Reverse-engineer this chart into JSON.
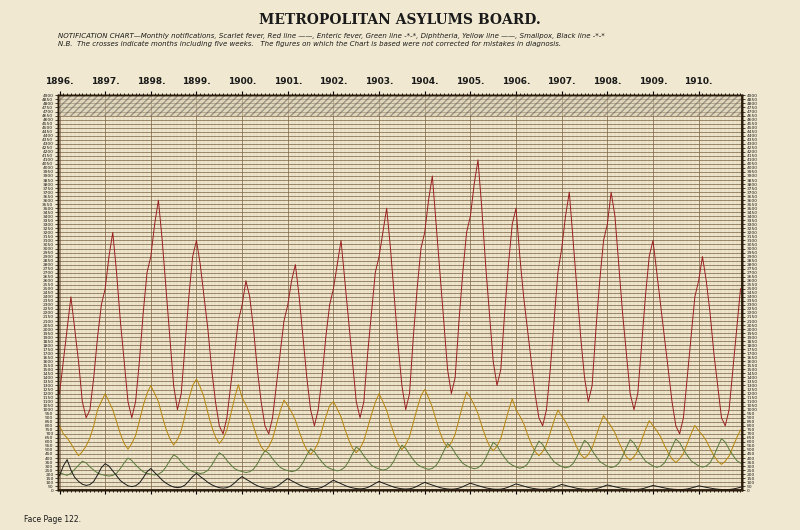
{
  "title": "METROPOLITAN ASYLUMS BOARD.",
  "subtitle_line1": "NOTIFICATION CHART—Monthly notifications, Scarlet fever, Red line ——, Enteric fever, Green line -*-*, Diphtheria, Yellow line ——, Smallpox, Black line -*-*",
  "subtitle_line2": "N.B.  The crosses indicate months including five weeks.   The figures on which the Chart is based were not corrected for mistakes in diagnosis.",
  "years": [
    "1896.",
    "1897.",
    "1898.",
    "1899.",
    "1900.",
    "1901.",
    "1902.",
    "1903.",
    "1904.",
    "1905.",
    "1906.",
    "1907.",
    "1908.",
    "1909.",
    "1910."
  ],
  "bg_color": "#f0e8d0",
  "chart_bg": "#ede5cc",
  "grid_minor_color": "#c8b89a",
  "grid_major_color": "#7a6040",
  "border_color": "#2a1a0a",
  "scarlet_color": "#9b2020",
  "enteric_color": "#5a7a3a",
  "diphtheria_color": "#b8860b",
  "smallpox_color": "#1a1a1a",
  "ymin": 0,
  "ymax": 4900,
  "n_months": 180,
  "face_page": "Face Page 122."
}
